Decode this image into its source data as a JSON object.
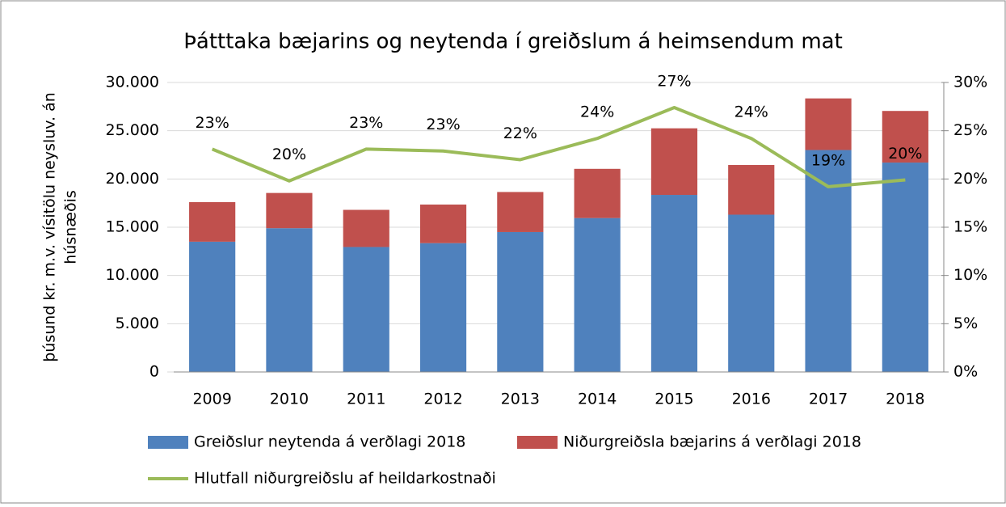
{
  "chart_data": {
    "type": "bar",
    "stacked": true,
    "title": "Þátttaka bæjarins og neytenda í greiðslum á heimsendum mat",
    "ylabel": [
      "þúsund kr. m.v. vísitölu neysluv. án",
      "húsnæðis"
    ],
    "categories": [
      "2009",
      "2010",
      "2011",
      "2012",
      "2013",
      "2014",
      "2015",
      "2016",
      "2017",
      "2018"
    ],
    "series": [
      {
        "name": "Greiðslur neytenda á verðlagi 2018",
        "color": "#4f81bd",
        "type": "bar",
        "values": [
          13500,
          14900,
          12950,
          13350,
          14500,
          15950,
          18350,
          16300,
          23000,
          21700
        ]
      },
      {
        "name": "Niðurgreiðsla bæjarins á verðlagi 2018",
        "color": "#c0504d",
        "type": "bar",
        "values": [
          4100,
          3650,
          3850,
          4000,
          4150,
          5100,
          6900,
          5150,
          5350,
          5350
        ]
      },
      {
        "name": "Hlutfall niðurgreiðslu af heildarkostnaði",
        "color": "#9bbb59",
        "type": "line",
        "axis": "y2",
        "values": [
          23.1,
          19.8,
          23.1,
          22.9,
          22.0,
          24.2,
          27.4,
          24.2,
          19.2,
          19.9
        ],
        "value_labels": [
          "23%",
          "20%",
          "23%",
          "23%",
          "22%",
          "24%",
          "27%",
          "24%",
          "19%",
          "20%"
        ]
      }
    ],
    "ylim": [
      0,
      30000
    ],
    "yticks": [
      0,
      {
        "value": 5000,
        "label": "5.000"
      },
      {
        "value": 10000,
        "label": "10.000"
      },
      {
        "value": 15000,
        "label": "15.000"
      },
      {
        "value": 20000,
        "label": "20.000"
      },
      {
        "value": 25000,
        "label": "25.000"
      },
      {
        "value": 30000,
        "label": "30.000"
      }
    ],
    "y2lim": [
      0,
      30
    ],
    "y2ticks": [
      {
        "value": 0,
        "label": "0%"
      },
      {
        "value": 5,
        "label": "5%"
      },
      {
        "value": 10,
        "label": "10%"
      },
      {
        "value": 15,
        "label": "15%"
      },
      {
        "value": 20,
        "label": "20%"
      },
      {
        "value": 25,
        "label": "25%"
      },
      {
        "value": 30,
        "label": "30%"
      }
    ],
    "grid": true,
    "legend": "bottom"
  }
}
